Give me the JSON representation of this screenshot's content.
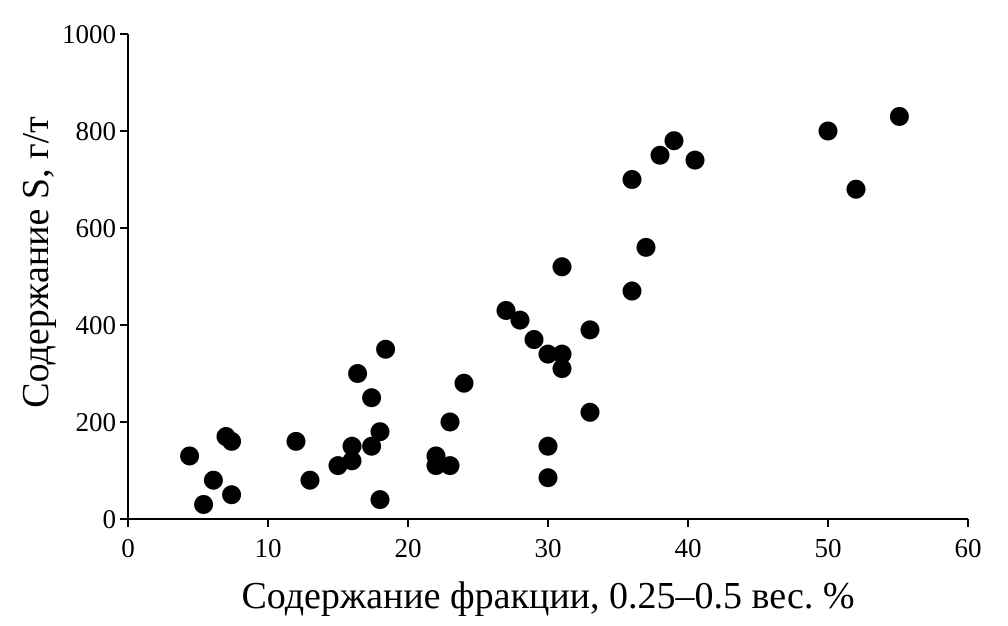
{
  "chart_data": {
    "type": "scatter",
    "x_label": "Содержание фракции, 0.25–0.5 вес. %",
    "y_label": "Содержание S, г/т",
    "xlim": [
      0,
      60
    ],
    "ylim": [
      0,
      1000
    ],
    "xticks": [
      0,
      10,
      20,
      30,
      40,
      50,
      60
    ],
    "yticks": [
      0,
      200,
      400,
      600,
      800,
      1000
    ],
    "color": "#000000",
    "x": [
      4.4,
      5.4,
      6.1,
      7.0,
      7.4,
      7.4,
      12,
      13,
      15,
      16,
      16,
      16.4,
      17.4,
      17.4,
      18,
      18,
      18.4,
      22,
      22,
      23,
      23,
      24,
      27,
      28,
      29,
      30,
      30,
      30,
      31,
      31,
      31,
      33,
      33,
      36,
      36,
      37,
      38,
      39,
      40.5,
      50,
      52,
      55.1
    ],
    "values": [
      130,
      30,
      80,
      170,
      160,
      50,
      160,
      80,
      110,
      150,
      120,
      300,
      250,
      150,
      180,
      40,
      350,
      130,
      110,
      200,
      110,
      280,
      430,
      410,
      370,
      340,
      150,
      85,
      340,
      310,
      520,
      390,
      220,
      470,
      700,
      560,
      750,
      780,
      740,
      800,
      680,
      830
    ]
  }
}
